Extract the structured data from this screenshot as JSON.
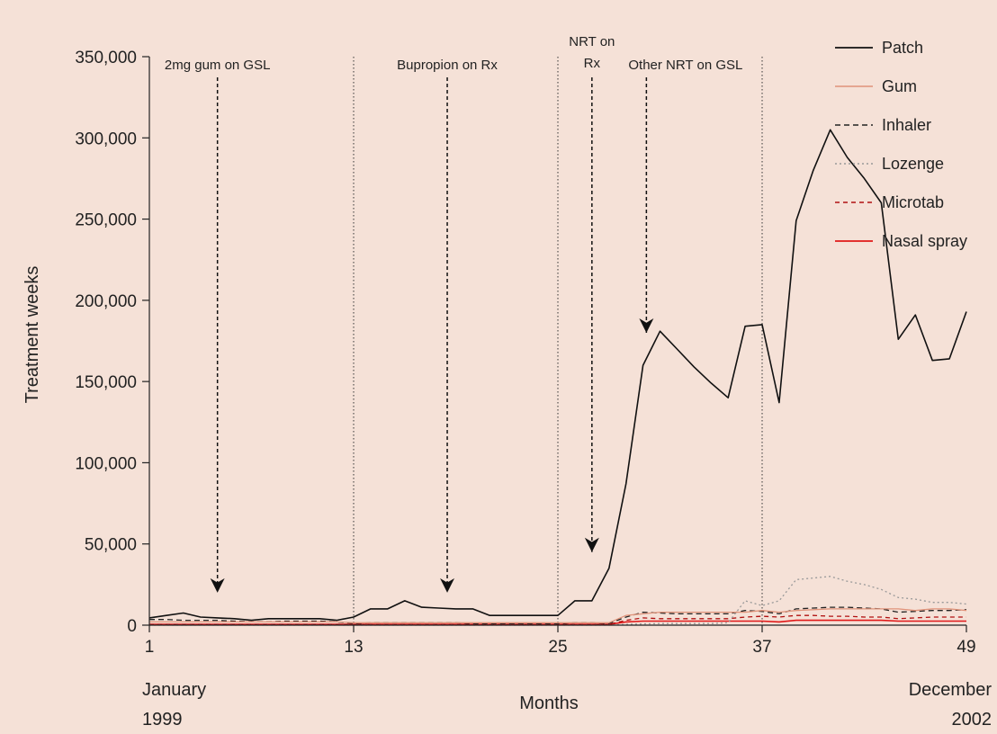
{
  "chart_data": {
    "type": "line",
    "title": "",
    "xlabel": "Months",
    "ylabel": "Treatment weeks",
    "xlim": [
      1,
      49
    ],
    "ylim": [
      0,
      350000
    ],
    "grid": false,
    "legend_position": "top-right",
    "background_color": "#f5e1d7",
    "x_ticks": [
      {
        "value": 1,
        "label": "1"
      },
      {
        "value": 13,
        "label": "13"
      },
      {
        "value": 25,
        "label": "25"
      },
      {
        "value": 37,
        "label": "37"
      },
      {
        "value": 49,
        "label": "49"
      }
    ],
    "x_tick_sublabels": {
      "start": [
        "January",
        "1999"
      ],
      "end": [
        "December",
        "2002"
      ]
    },
    "y_ticks": [
      {
        "value": 0,
        "label": "0"
      },
      {
        "value": 50000,
        "label": "50,000"
      },
      {
        "value": 100000,
        "label": "100,000"
      },
      {
        "value": 150000,
        "label": "150,000"
      },
      {
        "value": 200000,
        "label": "200,000"
      },
      {
        "value": 250000,
        "label": "250,000"
      },
      {
        "value": 300000,
        "label": "300,000"
      },
      {
        "value": 350000,
        "label": "350,000"
      }
    ],
    "vertical_lines": [
      13,
      25,
      37
    ],
    "annotations": [
      {
        "lines": [
          "2mg gum on GSL"
        ],
        "label_x": 5,
        "arrow_x": 5,
        "arrow_to_y": 20000,
        "arrow_from_y": 333000
      },
      {
        "lines": [
          "Bupropion on Rx"
        ],
        "label_x": 18.5,
        "arrow_x": 18.5,
        "arrow_to_y": 20000,
        "arrow_from_y": 333000
      },
      {
        "lines": [
          "NRT on",
          "Rx"
        ],
        "label_x": 27,
        "arrow_x": 27,
        "arrow_to_y": 45000,
        "arrow_from_y": 333000
      },
      {
        "lines": [
          "Other NRT on GSL"
        ],
        "label_x": 32.5,
        "arrow_x": 30.2,
        "arrow_to_y": 180000,
        "arrow_from_y": 333000
      }
    ],
    "x": [
      1,
      2,
      3,
      4,
      5,
      6,
      7,
      8,
      9,
      10,
      11,
      12,
      13,
      14,
      15,
      16,
      17,
      18,
      19,
      20,
      21,
      22,
      23,
      24,
      25,
      26,
      27,
      28,
      29,
      30,
      31,
      32,
      33,
      34,
      35,
      36,
      37,
      38,
      39,
      40,
      41,
      42,
      43,
      44,
      45,
      46,
      47,
      48,
      49
    ],
    "series": [
      {
        "name": "Patch",
        "color": "#111111",
        "dash": "solid",
        "width": 1.6,
        "values": [
          4500,
          6000,
          7500,
          5000,
          4500,
          4000,
          3000,
          4000,
          4000,
          4000,
          4000,
          3000,
          5000,
          10000,
          10000,
          15000,
          11000,
          10500,
          10000,
          10000,
          6000,
          6000,
          6000,
          6000,
          6000,
          15000,
          15000,
          35000,
          87000,
          160000,
          181000,
          170000,
          159000,
          149000,
          140000,
          184000,
          185000,
          137000,
          249000,
          280000,
          305000,
          288000,
          275000,
          260000,
          176000,
          191000,
          163000,
          164000,
          193000
        ]
      },
      {
        "name": "Gum",
        "color": "#e0937a",
        "dash": "solid",
        "width": 1.3,
        "values": [
          2000,
          2000,
          2000,
          2000,
          2000,
          2000,
          2000,
          2000,
          2000,
          2000,
          2000,
          2000,
          1500,
          1500,
          1500,
          1500,
          1500,
          1500,
          1500,
          1500,
          1500,
          1500,
          1500,
          1500,
          1500,
          1500,
          1500,
          1500,
          6000,
          7000,
          8000,
          8000,
          8000,
          8000,
          8000,
          8000,
          9000,
          8000,
          9000,
          9500,
          10000,
          10000,
          10000,
          10000,
          10000,
          9000,
          10000,
          10000,
          9000
        ]
      },
      {
        "name": "Inhaler",
        "color": "#222222",
        "dash": "6,4",
        "width": 1.3,
        "values": [
          3500,
          3500,
          3000,
          3000,
          3000,
          2500,
          2000,
          2000,
          2500,
          2500,
          2500,
          2000,
          1000,
          1500,
          1500,
          1500,
          1500,
          1500,
          1500,
          1000,
          1000,
          1000,
          1000,
          1000,
          1000,
          1500,
          1500,
          1000,
          5000,
          8000,
          7500,
          7000,
          7000,
          7000,
          7000,
          9000,
          8500,
          7000,
          10000,
          10500,
          11000,
          11000,
          10500,
          10000,
          8000,
          8500,
          9000,
          9000,
          9500
        ]
      },
      {
        "name": "Lozenge",
        "color": "#999999",
        "dash": "2,3",
        "width": 1.3,
        "values": [
          0,
          0,
          0,
          0,
          0,
          0,
          0,
          0,
          0,
          0,
          0,
          0,
          0,
          0,
          0,
          0,
          0,
          0,
          0,
          0,
          0,
          0,
          0,
          0,
          0,
          0,
          0,
          0,
          500,
          800,
          1000,
          1000,
          1000,
          1000,
          1500,
          15000,
          12000,
          15000,
          28000,
          29000,
          30000,
          27000,
          25000,
          22000,
          17000,
          16000,
          14000,
          14000,
          13000
        ]
      },
      {
        "name": "Microtab",
        "color": "#b01010",
        "dash": "5,4",
        "width": 1.3,
        "values": [
          500,
          500,
          500,
          500,
          500,
          500,
          500,
          500,
          500,
          500,
          500,
          500,
          500,
          500,
          500,
          500,
          500,
          500,
          500,
          500,
          500,
          500,
          500,
          500,
          500,
          500,
          500,
          500,
          3000,
          4500,
          4000,
          4000,
          4000,
          4000,
          4000,
          5000,
          5500,
          5000,
          6000,
          6000,
          5500,
          5500,
          5000,
          5000,
          4000,
          4500,
          5000,
          5000,
          5000
        ]
      },
      {
        "name": "Nasal spray",
        "color": "#e01818",
        "dash": "solid",
        "width": 1.6,
        "values": [
          500,
          500,
          500,
          500,
          500,
          500,
          500,
          500,
          500,
          500,
          500,
          500,
          500,
          500,
          500,
          500,
          500,
          500,
          500,
          500,
          500,
          500,
          500,
          500,
          500,
          500,
          500,
          500,
          2000,
          2500,
          2500,
          2500,
          2500,
          2500,
          2500,
          2500,
          2500,
          2000,
          3000,
          3000,
          3000,
          3000,
          3000,
          3000,
          2500,
          2500,
          2500,
          2500,
          2500
        ]
      }
    ]
  }
}
